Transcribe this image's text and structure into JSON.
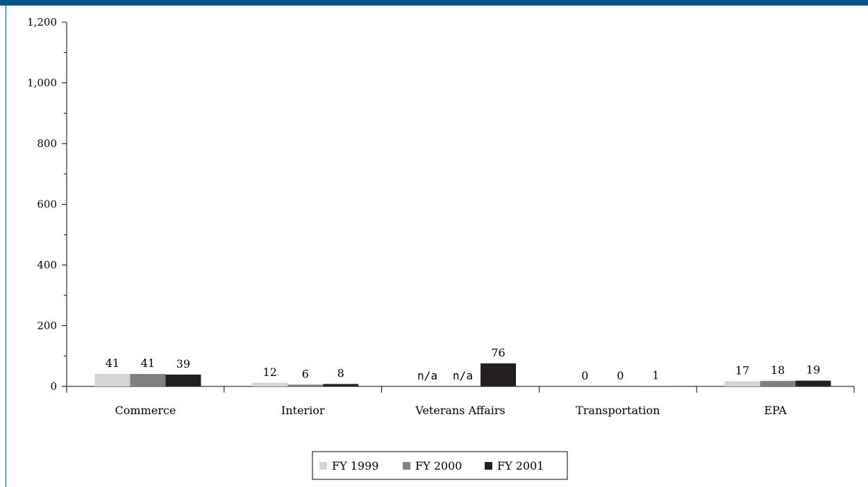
{
  "page": {
    "band_color": "#00558c"
  },
  "chart_data": {
    "type": "bar",
    "categories": [
      "Commerce",
      "Interior",
      "Veterans Affairs",
      "Transportation",
      "EPA"
    ],
    "series": [
      {
        "name": "FY 1999",
        "color": "#d4d4d4",
        "values": [
          41,
          12,
          null,
          0,
          17
        ],
        "labels": [
          "41",
          "12",
          "n/a",
          "0",
          "17"
        ]
      },
      {
        "name": "FY 2000",
        "color": "#808080",
        "values": [
          41,
          6,
          null,
          0,
          18
        ],
        "labels": [
          "41",
          "6",
          "n/a",
          "0",
          "18"
        ]
      },
      {
        "name": "FY 2001",
        "color": "#231f20",
        "values": [
          39,
          8,
          76,
          1,
          19
        ],
        "labels": [
          "39",
          "8",
          "76",
          "1",
          "19"
        ]
      }
    ],
    "ylim": [
      0,
      1200
    ],
    "y_ticks": [
      0,
      200,
      400,
      600,
      800,
      1000,
      1200
    ],
    "y_tick_labels": [
      "0",
      "200",
      "400",
      "600",
      "800",
      "1,000",
      "1,200"
    ],
    "grid": false,
    "legend_position": "bottom-center"
  }
}
